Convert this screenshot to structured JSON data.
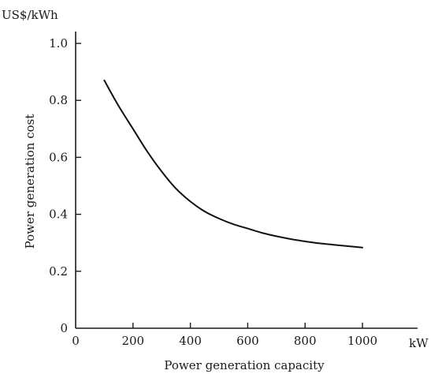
{
  "chart_data": {
    "type": "line",
    "xlabel": "Power generation capacity",
    "ylabel": "Power generation cost",
    "x_unit": "kW",
    "y_unit": "US$/kWh",
    "xlim": [
      0,
      1150
    ],
    "ylim": [
      0,
      1.0
    ],
    "x_ticks": [
      "0",
      "200",
      "400",
      "600",
      "800",
      "1000"
    ],
    "y_ticks": [
      "0",
      "0.2",
      "0.4",
      "0.6",
      "0.8",
      "1.0"
    ],
    "grid": false,
    "series": [
      {
        "x": [
          100,
          150,
          200,
          250,
          300,
          350,
          400,
          450,
          500,
          550,
          600,
          650,
          700,
          750,
          800,
          850,
          900,
          950,
          1000
        ],
        "y": [
          0.87,
          0.78,
          0.7,
          0.62,
          0.55,
          0.49,
          0.445,
          0.41,
          0.385,
          0.365,
          0.35,
          0.335,
          0.323,
          0.313,
          0.305,
          0.298,
          0.293,
          0.288,
          0.283
        ]
      }
    ]
  }
}
